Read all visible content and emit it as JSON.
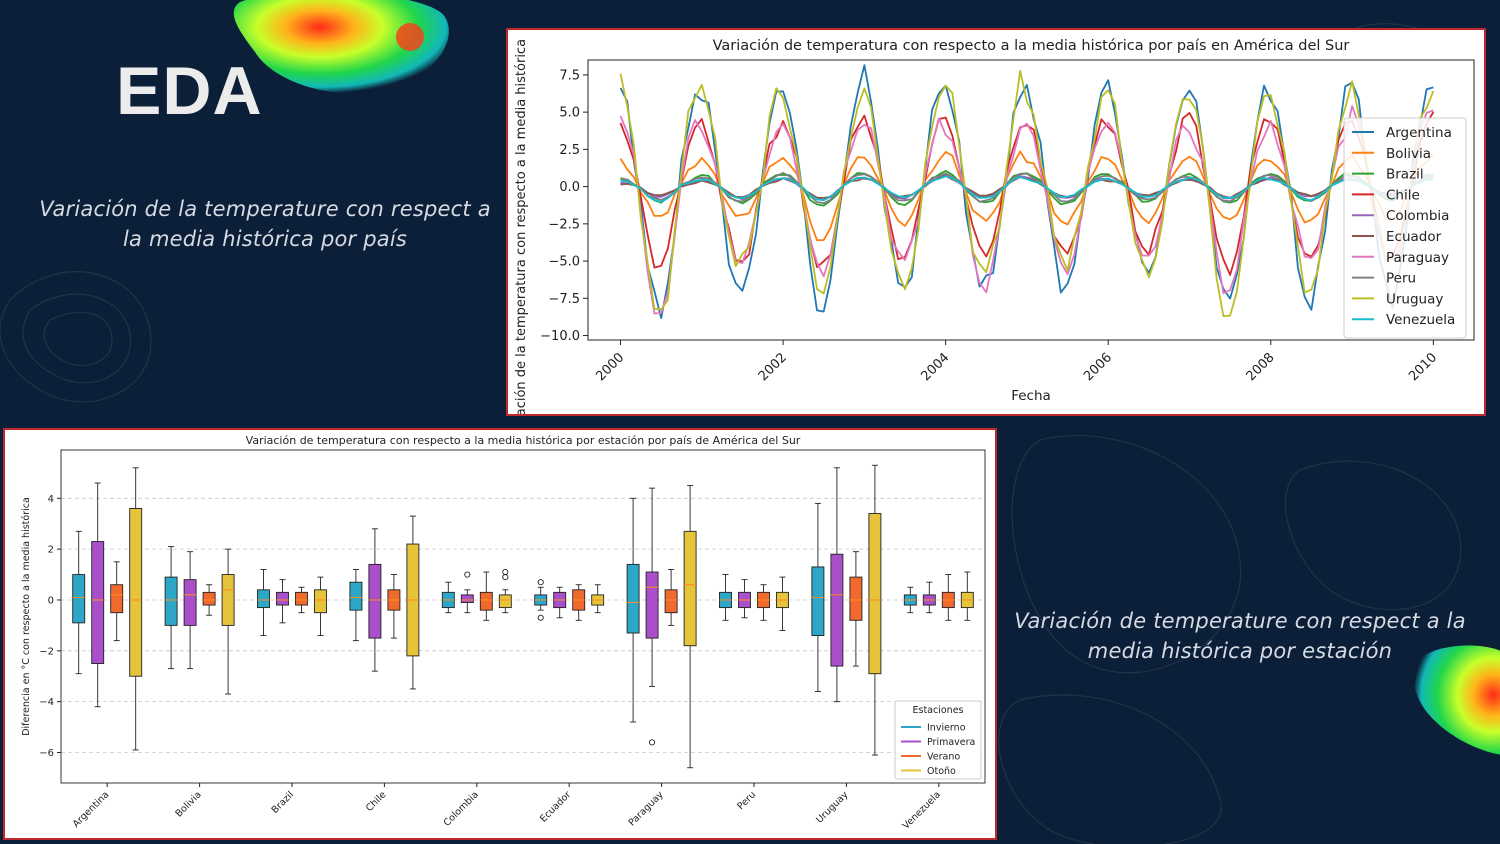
{
  "slide": {
    "title": "EDA",
    "caption_top": "Variación de la temperature con respect a la media histórica por país",
    "caption_bottom": "Variación de temperature con respect a la media histórica por estación"
  },
  "colors": {
    "background": "#0c1f38",
    "panel_border": "#c0282d"
  },
  "chart_data": [
    {
      "type": "line",
      "title": "Variación de temperatura con respecto a la media histórica por país en América del Sur",
      "xlabel": "Fecha",
      "ylabel": "Variación de la temperatura con respecto a la media histórica",
      "xlim": [
        1999.6,
        2010.5
      ],
      "ylim": [
        -10.3,
        8.5
      ],
      "x_ticks": [
        2000,
        2002,
        2004,
        2006,
        2008,
        2010
      ],
      "y_ticks": [
        7.5,
        5.0,
        2.5,
        0.0,
        -2.5,
        -5.0,
        -7.5,
        -10.0
      ],
      "y_tick_labels": [
        "7.5",
        "5.0",
        "2.5",
        "0.0",
        "−2.5",
        "−5.0",
        "−7.5",
        "−10.0"
      ],
      "grid": false,
      "legend_position": "right",
      "series": [
        {
          "name": "Argentina",
          "color": "#1f77b4",
          "amplitude": 7.2,
          "annual_peaks": [
            6.7,
            6.4,
            6.8,
            7.6,
            6.6,
            6.8,
            6.6,
            6.7,
            6.5,
            7.1
          ],
          "annual_troughs": [
            -8.3,
            -7.3,
            -8.4,
            -6.9,
            -6.9,
            -6.8,
            -5.6,
            -7.8,
            -7.9,
            -7.5
          ]
        },
        {
          "name": "Bolivia",
          "color": "#ff7f0e",
          "amplitude": 2.0,
          "annual_peaks": [
            1.7,
            1.8,
            2.0,
            1.9,
            2.4,
            1.9,
            1.9,
            2.0,
            1.8,
            2.0
          ],
          "annual_troughs": [
            -2.0,
            -2.1,
            -3.7,
            -2.5,
            -2.3,
            -2.5,
            -2.3,
            -2.3,
            -2.4,
            -2.2
          ]
        },
        {
          "name": "Brazil",
          "color": "#2ca02c",
          "amplitude": 0.9,
          "annual_peaks": [
            0.6,
            0.8,
            0.9,
            0.9,
            1.0,
            0.9,
            0.8,
            0.8,
            0.9,
            0.8
          ],
          "annual_troughs": [
            -1.0,
            -1.1,
            -1.3,
            -1.2,
            -1.1,
            -1.2,
            -1.0,
            -1.1,
            -1.0,
            -0.9
          ]
        },
        {
          "name": "Chile",
          "color": "#d62728",
          "amplitude": 4.5,
          "annual_peaks": [
            4.4,
            4.1,
            4.3,
            4.8,
            4.4,
            4.4,
            4.5,
            5.0,
            4.5,
            4.6
          ],
          "annual_troughs": [
            -5.4,
            -5.2,
            -5.6,
            -4.8,
            -4.5,
            -4.6,
            -4.3,
            -5.6,
            -5.0,
            -4.8
          ]
        },
        {
          "name": "Colombia",
          "color": "#9467bd",
          "amplitude": 0.6,
          "annual_peaks": [
            0.3,
            0.5,
            0.6,
            0.6,
            0.8,
            0.6,
            0.5,
            0.5,
            0.6,
            0.5
          ],
          "annual_troughs": [
            -0.7,
            -0.8,
            -0.9,
            -0.8,
            -0.7,
            -0.8,
            -0.7,
            -0.8,
            -0.7,
            -0.6
          ]
        },
        {
          "name": "Ecuador",
          "color": "#8c564b",
          "amplitude": 0.6,
          "annual_peaks": [
            0.2,
            0.4,
            0.5,
            0.6,
            0.7,
            0.5,
            0.4,
            0.5,
            0.5,
            0.5
          ],
          "annual_troughs": [
            -0.6,
            -0.7,
            -0.8,
            -0.7,
            -0.6,
            -0.7,
            -0.6,
            -0.7,
            -0.6,
            -0.5
          ]
        },
        {
          "name": "Paraguay",
          "color": "#e377c2",
          "amplitude": 4.0,
          "annual_peaks": [
            4.7,
            3.8,
            4.1,
            4.5,
            3.9,
            4.2,
            4.4,
            3.7,
            4.0,
            5.3
          ],
          "annual_troughs": [
            -9.0,
            -5.1,
            -5.8,
            -5.0,
            -6.9,
            -5.7,
            -5.0,
            -7.2,
            -4.9,
            -5.2
          ]
        },
        {
          "name": "Peru",
          "color": "#7f7f7f",
          "amplitude": 0.8,
          "annual_peaks": [
            0.5,
            0.7,
            0.9,
            0.8,
            0.9,
            0.8,
            0.7,
            0.7,
            0.8,
            0.7
          ],
          "annual_troughs": [
            -0.9,
            -1.0,
            -1.1,
            -1.0,
            -1.0,
            -1.0,
            -0.9,
            -1.0,
            -0.9,
            -0.8
          ]
        },
        {
          "name": "Uruguay",
          "color": "#bcbd22",
          "amplitude": 6.5,
          "annual_peaks": [
            7.0,
            6.9,
            5.8,
            6.4,
            7.5,
            6.2,
            6.5,
            6.3,
            6.1,
            6.4
          ],
          "annual_troughs": [
            -8.8,
            -5.2,
            -7.0,
            -6.8,
            -5.8,
            -5.0,
            -5.9,
            -9.2,
            -7.0,
            -5.2
          ]
        },
        {
          "name": "Venezuela",
          "color": "#17becf",
          "amplitude": 0.5,
          "annual_peaks": [
            0.4,
            0.5,
            0.6,
            0.6,
            0.7,
            0.5,
            0.5,
            0.6,
            0.5,
            0.5
          ],
          "annual_troughs": [
            -1.0,
            -0.8,
            -0.9,
            -0.7,
            -0.8,
            -0.7,
            -0.7,
            -0.8,
            -0.9,
            -0.7
          ]
        }
      ]
    },
    {
      "type": "box",
      "title": "Variación de temperatura con respecto a la media histórica por estación por país de América del Sur",
      "xlabel": "",
      "ylabel": "Diferencia en °C con respecto a la media histórica",
      "ylim": [
        -7.2,
        5.9
      ],
      "y_ticks": [
        4,
        2,
        0,
        -2,
        -4,
        -6
      ],
      "y_tick_labels": [
        "4",
        "2",
        "0",
        "−2",
        "−4",
        "−6"
      ],
      "grid": "horizontal dashed",
      "legend_title": "Estaciones",
      "legend_position": "lower right",
      "seasons": [
        {
          "name": "Invierno",
          "color": "#2ea6c7"
        },
        {
          "name": "Primavera",
          "color": "#a94fca"
        },
        {
          "name": "Verano",
          "color": "#f06a2d"
        },
        {
          "name": "Otoño",
          "color": "#e5c33a"
        }
      ],
      "categories": [
        "Argentina",
        "Bolivia",
        "Brazil",
        "Chile",
        "Colombia",
        "Ecuador",
        "Paraguay",
        "Peru",
        "Uruguay",
        "Venezuela"
      ],
      "boxes": [
        [
          {
            "whislo": -2.9,
            "q1": -0.9,
            "med": 0.1,
            "q3": 1.0,
            "whishi": 2.7,
            "fliers": []
          },
          {
            "whislo": -4.2,
            "q1": -2.5,
            "med": 0.0,
            "q3": 2.3,
            "whishi": 4.6,
            "fliers": []
          },
          {
            "whislo": -1.6,
            "q1": -0.5,
            "med": 0.2,
            "q3": 0.6,
            "whishi": 1.5,
            "fliers": []
          },
          {
            "whislo": -5.9,
            "q1": -3.0,
            "med": 0.0,
            "q3": 3.6,
            "whishi": 5.2,
            "fliers": []
          }
        ],
        [
          {
            "whislo": -2.7,
            "q1": -1.0,
            "med": 0.0,
            "q3": 0.9,
            "whishi": 2.1,
            "fliers": []
          },
          {
            "whislo": -2.7,
            "q1": -1.0,
            "med": 0.2,
            "q3": 0.8,
            "whishi": 1.9,
            "fliers": []
          },
          {
            "whislo": -0.6,
            "q1": -0.2,
            "med": 0.0,
            "q3": 0.3,
            "whishi": 0.6,
            "fliers": []
          },
          {
            "whislo": -3.7,
            "q1": -1.0,
            "med": 0.4,
            "q3": 1.0,
            "whishi": 2.0,
            "fliers": []
          }
        ],
        [
          {
            "whislo": -1.4,
            "q1": -0.3,
            "med": 0.0,
            "q3": 0.4,
            "whishi": 1.2,
            "fliers": []
          },
          {
            "whislo": -0.9,
            "q1": -0.2,
            "med": 0.0,
            "q3": 0.3,
            "whishi": 0.8,
            "fliers": []
          },
          {
            "whislo": -0.5,
            "q1": -0.2,
            "med": 0.0,
            "q3": 0.3,
            "whishi": 0.5,
            "fliers": []
          },
          {
            "whislo": -1.4,
            "q1": -0.5,
            "med": 0.0,
            "q3": 0.4,
            "whishi": 0.9,
            "fliers": []
          }
        ],
        [
          {
            "whislo": -1.6,
            "q1": -0.4,
            "med": 0.1,
            "q3": 0.7,
            "whishi": 1.2,
            "fliers": []
          },
          {
            "whislo": -2.8,
            "q1": -1.5,
            "med": 0.0,
            "q3": 1.4,
            "whishi": 2.8,
            "fliers": []
          },
          {
            "whislo": -1.5,
            "q1": -0.4,
            "med": 0.0,
            "q3": 0.4,
            "whishi": 1.0,
            "fliers": []
          },
          {
            "whislo": -3.5,
            "q1": -2.2,
            "med": 0.0,
            "q3": 2.2,
            "whishi": 3.3,
            "fliers": []
          }
        ],
        [
          {
            "whislo": -0.5,
            "q1": -0.3,
            "med": 0.0,
            "q3": 0.3,
            "whishi": 0.7,
            "fliers": []
          },
          {
            "whislo": -0.5,
            "q1": -0.1,
            "med": 0.0,
            "q3": 0.2,
            "whishi": 0.4,
            "fliers": [
              1.0
            ]
          },
          {
            "whislo": -0.8,
            "q1": -0.4,
            "med": 0.0,
            "q3": 0.3,
            "whishi": 1.1,
            "fliers": []
          },
          {
            "whislo": -0.5,
            "q1": -0.3,
            "med": 0.0,
            "q3": 0.2,
            "whishi": 0.4,
            "fliers": [
              0.9,
              1.1
            ]
          }
        ],
        [
          {
            "whislo": -0.4,
            "q1": -0.2,
            "med": 0.0,
            "q3": 0.2,
            "whishi": 0.5,
            "fliers": [
              0.7,
              -0.7
            ]
          },
          {
            "whislo": -0.7,
            "q1": -0.3,
            "med": 0.0,
            "q3": 0.3,
            "whishi": 0.5,
            "fliers": []
          },
          {
            "whislo": -0.8,
            "q1": -0.4,
            "med": 0.0,
            "q3": 0.4,
            "whishi": 0.6,
            "fliers": []
          },
          {
            "whislo": -0.5,
            "q1": -0.2,
            "med": 0.0,
            "q3": 0.2,
            "whishi": 0.6,
            "fliers": []
          }
        ],
        [
          {
            "whislo": -4.8,
            "q1": -1.3,
            "med": -0.1,
            "q3": 1.4,
            "whishi": 4.0,
            "fliers": []
          },
          {
            "whislo": -3.4,
            "q1": -1.5,
            "med": 0.5,
            "q3": 1.1,
            "whishi": 4.4,
            "fliers": [
              -5.6
            ]
          },
          {
            "whislo": -1.0,
            "q1": -0.5,
            "med": 0.0,
            "q3": 0.4,
            "whishi": 1.2,
            "fliers": []
          },
          {
            "whislo": -6.6,
            "q1": -1.8,
            "med": 0.6,
            "q3": 2.7,
            "whishi": 4.5,
            "fliers": []
          }
        ],
        [
          {
            "whislo": -0.8,
            "q1": -0.3,
            "med": 0.0,
            "q3": 0.3,
            "whishi": 1.0,
            "fliers": []
          },
          {
            "whislo": -0.7,
            "q1": -0.3,
            "med": 0.0,
            "q3": 0.3,
            "whishi": 0.8,
            "fliers": []
          },
          {
            "whislo": -0.8,
            "q1": -0.3,
            "med": 0.0,
            "q3": 0.3,
            "whishi": 0.6,
            "fliers": []
          },
          {
            "whislo": -1.2,
            "q1": -0.3,
            "med": 0.0,
            "q3": 0.3,
            "whishi": 0.9,
            "fliers": []
          }
        ],
        [
          {
            "whislo": -3.6,
            "q1": -1.4,
            "med": 0.1,
            "q3": 1.3,
            "whishi": 3.8,
            "fliers": []
          },
          {
            "whislo": -4.0,
            "q1": -2.6,
            "med": 0.2,
            "q3": 1.8,
            "whishi": 5.2,
            "fliers": []
          },
          {
            "whislo": -2.6,
            "q1": -0.8,
            "med": 0.0,
            "q3": 0.9,
            "whishi": 1.9,
            "fliers": []
          },
          {
            "whislo": -6.1,
            "q1": -2.9,
            "med": 0.0,
            "q3": 3.4,
            "whishi": 5.3,
            "fliers": []
          }
        ],
        [
          {
            "whislo": -0.5,
            "q1": -0.2,
            "med": 0.0,
            "q3": 0.2,
            "whishi": 0.5,
            "fliers": []
          },
          {
            "whislo": -0.5,
            "q1": -0.2,
            "med": 0.0,
            "q3": 0.2,
            "whishi": 0.7,
            "fliers": []
          },
          {
            "whislo": -0.8,
            "q1": -0.3,
            "med": 0.0,
            "q3": 0.3,
            "whishi": 1.0,
            "fliers": []
          },
          {
            "whislo": -0.8,
            "q1": -0.3,
            "med": 0.0,
            "q3": 0.3,
            "whishi": 1.1,
            "fliers": []
          }
        ]
      ]
    }
  ]
}
